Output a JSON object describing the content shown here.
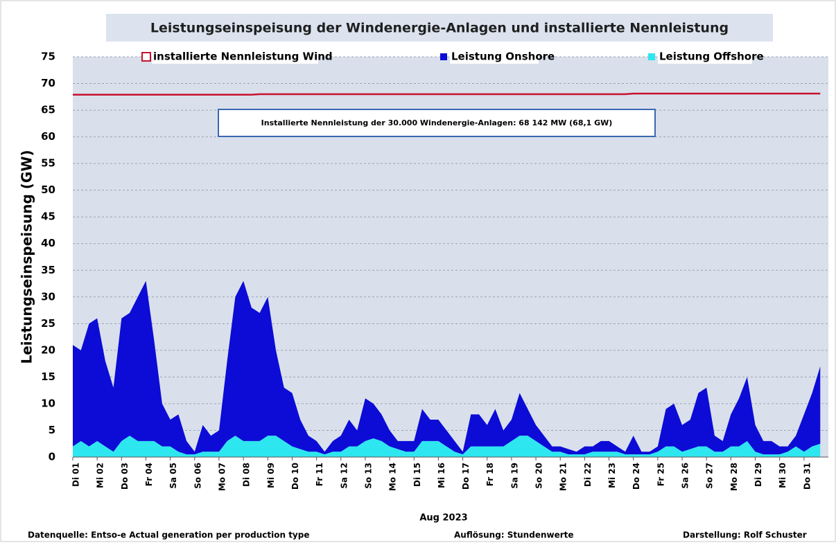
{
  "chart_data": {
    "type": "stacked-area",
    "title": "Leistungseinspeisung der Windenergie-Anlagen und installierte Nennleistung",
    "y_label": "Leistungseinspeisung  (GW)",
    "x_label": "Aug 2023",
    "annotation": "Installierte Nennleistung der 30.000 Windenergie-Anlagen: 68 142 MW (68,1 GW)",
    "footer": [
      "Datenquelle: Entso-e  Actual generation per production type",
      "Auflösung: Stundenwerte",
      "Darstellung:  Rolf Schuster"
    ],
    "legend": "top",
    "grid": true,
    "ylim": [
      0,
      75
    ],
    "yticks": [
      0,
      5,
      10,
      15,
      20,
      25,
      30,
      35,
      40,
      45,
      50,
      55,
      60,
      65,
      70,
      75
    ],
    "categories": [
      "Di 01",
      null,
      null,
      "Mi 02",
      null,
      null,
      "Do 03",
      null,
      null,
      "Fr 04",
      null,
      null,
      "Sa 05",
      null,
      null,
      "So 06",
      null,
      null,
      "Mo 07",
      null,
      null,
      "Di 08",
      null,
      null,
      "Mi 09",
      null,
      null,
      "Do 10",
      null,
      null,
      "Fr 11",
      null,
      null,
      "Sa 12",
      null,
      null,
      "So 13",
      null,
      null,
      "Mo 14",
      null,
      null,
      "Di 15",
      null,
      null,
      "Mi 16",
      null,
      null,
      "Do 17",
      null,
      null,
      "Fr 18",
      null,
      null,
      "Sa 19",
      null,
      null,
      "So 20",
      null,
      null,
      "Mo 21",
      null,
      null,
      "Di 22",
      null,
      null,
      "Mi 23",
      null,
      null,
      "Do 24",
      null,
      null,
      "Fr 25",
      null,
      null,
      "Sa 26",
      null,
      null,
      "So 27",
      null,
      null,
      "Mo 28",
      null,
      null,
      "Di 29",
      null,
      null,
      "Mi 30",
      null,
      null,
      "Do 31",
      null,
      null
    ],
    "series": [
      {
        "name": "installierte Nennleistung Wind",
        "kind": "line",
        "color": "#c8102e",
        "values": [
          67.9,
          67.9,
          67.9,
          67.9,
          67.9,
          67.9,
          67.9,
          67.9,
          67.9,
          67.9,
          67.9,
          67.9,
          67.9,
          67.9,
          67.9,
          67.9,
          67.9,
          67.9,
          67.9,
          67.9,
          67.9,
          67.9,
          67.9,
          68.0,
          68.0,
          68.0,
          68.0,
          68.0,
          68.0,
          68.0,
          68.0,
          68.0,
          68.0,
          68.0,
          68.0,
          68.0,
          68.0,
          68.0,
          68.0,
          68.0,
          68.0,
          68.0,
          68.0,
          68.0,
          68.0,
          68.0,
          68.0,
          68.0,
          68.0,
          68.0,
          68.0,
          68.0,
          68.0,
          68.0,
          68.0,
          68.0,
          68.0,
          68.0,
          68.0,
          68.0,
          68.0,
          68.0,
          68.0,
          68.0,
          68.0,
          68.0,
          68.0,
          68.0,
          68.0,
          68.1,
          68.1,
          68.1,
          68.1,
          68.1,
          68.1,
          68.1,
          68.1,
          68.1,
          68.1,
          68.1,
          68.1,
          68.1,
          68.1,
          68.1,
          68.1,
          68.1,
          68.1,
          68.1,
          68.1,
          68.1,
          68.1,
          68.1,
          68.1
        ]
      },
      {
        "name": "Leistung Onshore",
        "kind": "area",
        "color": "#0c0cd6",
        "values": [
          19,
          17,
          23,
          23,
          16,
          12,
          23,
          23,
          27,
          30,
          19,
          8,
          5,
          7,
          2.5,
          0.5,
          5,
          3,
          4,
          15,
          26,
          30,
          25,
          24,
          26,
          16,
          10,
          10,
          5.5,
          3,
          2,
          0.5,
          2,
          3,
          5,
          3,
          8,
          6.5,
          5,
          3,
          1.5,
          2,
          2,
          6,
          4,
          4,
          3,
          2,
          0.5,
          6,
          6,
          4,
          7,
          3,
          4,
          8,
          5,
          3,
          2,
          1,
          1,
          1,
          0.5,
          1.5,
          1,
          2,
          2,
          1,
          0.5,
          3.5,
          0.5,
          0.5,
          1,
          7,
          8,
          5,
          5.5,
          10,
          11,
          3,
          2,
          6,
          9,
          12,
          5,
          2.5,
          2.5,
          1.5,
          1,
          2,
          7,
          10,
          14.5
        ]
      },
      {
        "name": "Leistung Offshore",
        "kind": "area",
        "color": "#2ee6f0",
        "values": [
          2,
          3,
          2,
          3,
          2,
          1,
          3,
          4,
          3,
          3,
          3,
          2,
          2,
          1,
          0.5,
          0.5,
          1,
          1,
          1,
          3,
          4,
          3,
          3,
          3,
          4,
          4,
          3,
          2,
          1.5,
          1,
          1,
          0.5,
          1,
          1,
          2,
          2,
          3,
          3.5,
          3,
          2,
          1.5,
          1,
          1,
          3,
          3,
          3,
          2,
          1,
          0.5,
          2,
          2,
          2,
          2,
          2,
          3,
          4,
          4,
          3,
          2,
          1,
          1,
          0.5,
          0.5,
          0.5,
          1,
          1,
          1,
          1,
          0.5,
          0.5,
          0.5,
          0.5,
          1,
          2,
          2,
          1,
          1.5,
          2,
          2,
          1,
          1,
          2,
          2,
          3,
          1,
          0.5,
          0.5,
          0.5,
          1,
          2,
          1,
          2,
          2.5
        ]
      }
    ]
  }
}
